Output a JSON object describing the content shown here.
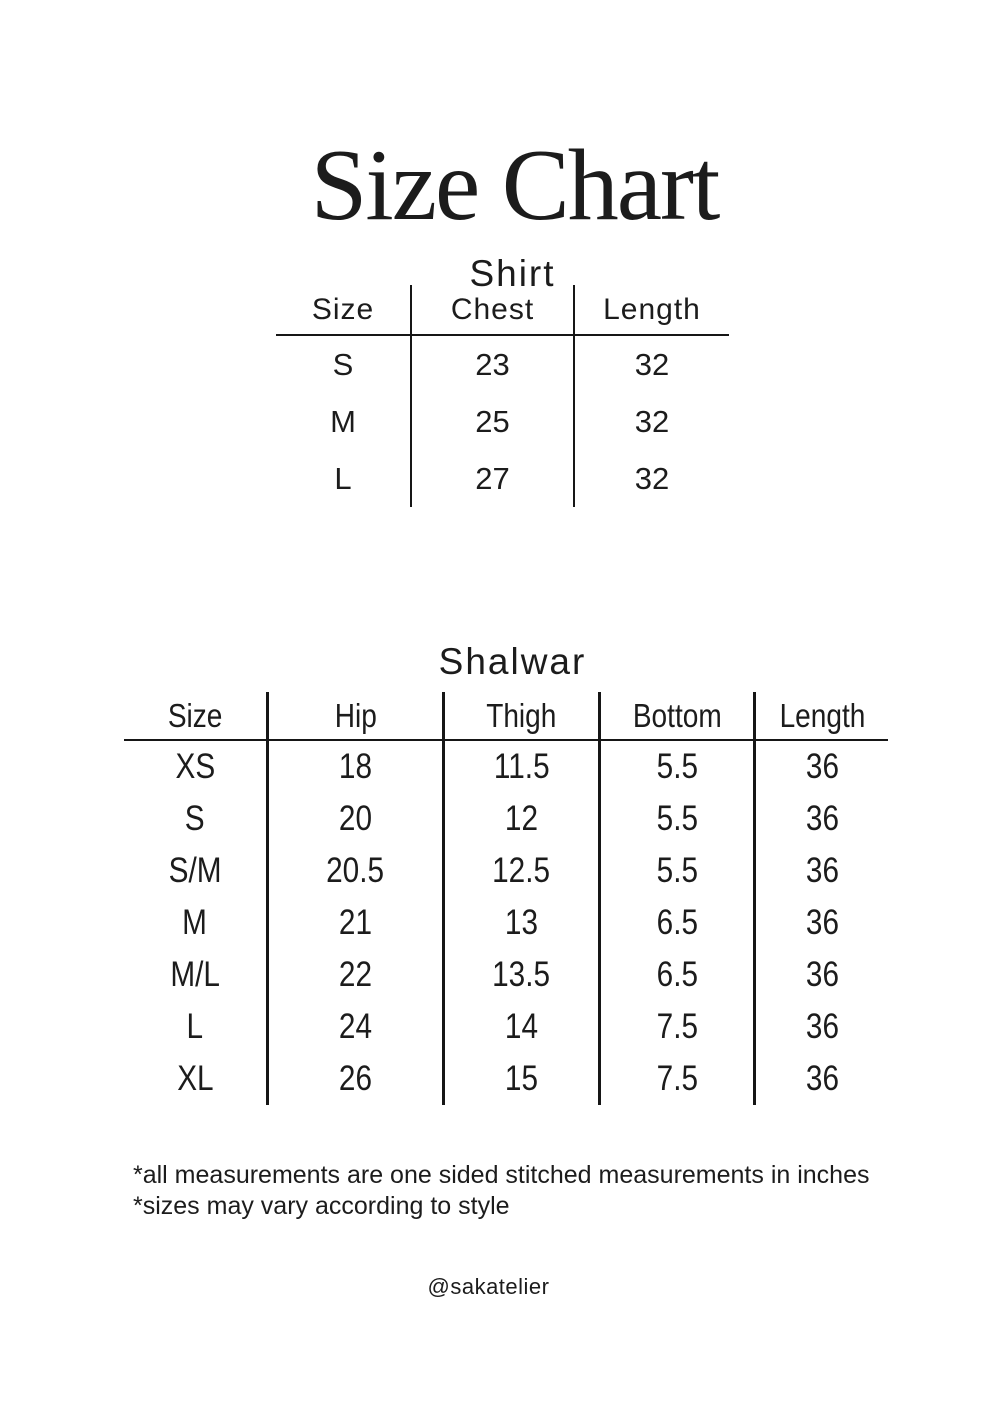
{
  "title": "Size Chart",
  "shirt": {
    "title": "Shirt",
    "table": {
      "headers": [
        "Size",
        "Chest",
        "Length"
      ],
      "rows": [
        [
          "S",
          "23",
          "32"
        ],
        [
          "M",
          "25",
          "32"
        ],
        [
          "L",
          "27",
          "32"
        ]
      ]
    }
  },
  "shalwar": {
    "title": "Shalwar",
    "table": {
      "headers": [
        "Size",
        "Hip",
        "Thigh",
        "Bottom",
        "Length"
      ],
      "rows": [
        [
          "XS",
          "18",
          "11.5",
          "5.5",
          "36"
        ],
        [
          "S",
          "20",
          "12",
          "5.5",
          "36"
        ],
        [
          "S/M",
          "20.5",
          "12.5",
          "5.5",
          "36"
        ],
        [
          "M",
          "21",
          "13",
          "6.5",
          "36"
        ],
        [
          "M/L",
          "22",
          "13.5",
          "6.5",
          "36"
        ],
        [
          "L",
          "24",
          "14",
          "7.5",
          "36"
        ],
        [
          "XL",
          "26",
          "15",
          "7.5",
          "36"
        ]
      ]
    }
  },
  "notes": [
    "*all measurements are one sided stitched measurements in inches",
    "*sizes may vary according to style"
  ],
  "handle": "@sakatelier",
  "colors": {
    "background": "#ffffff",
    "text": "#1c1c1c",
    "line": "#161616"
  }
}
